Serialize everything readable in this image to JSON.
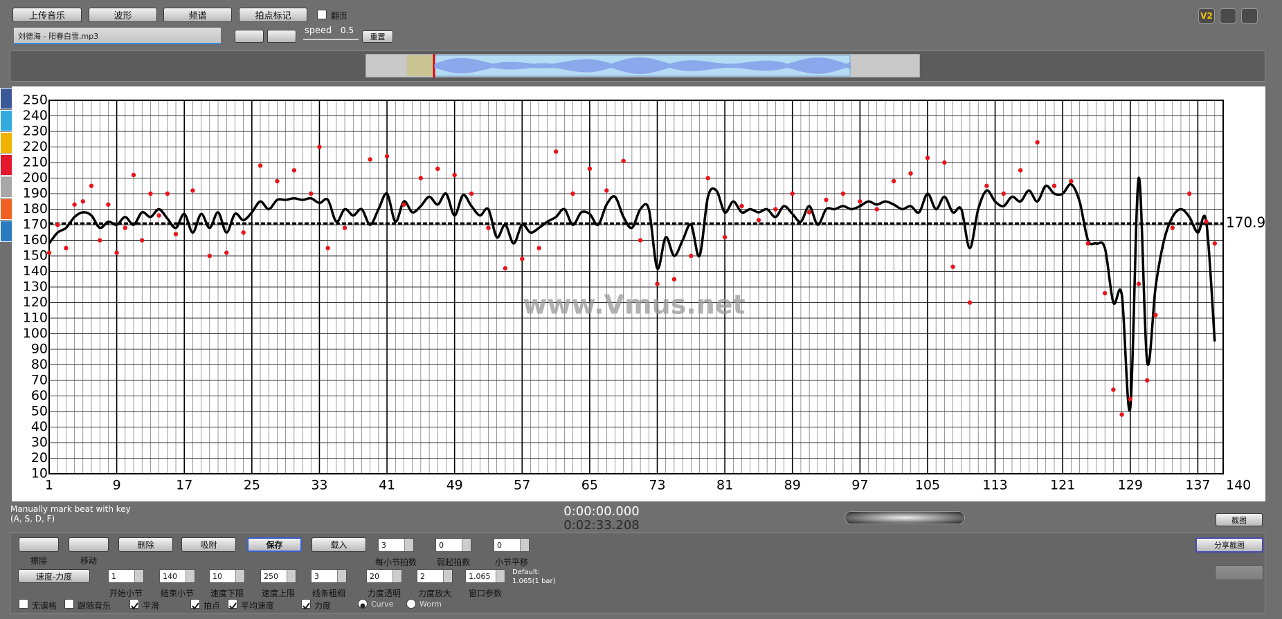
{
  "toolbar": {
    "buttons": [
      "上传音乐",
      "波形",
      "频谱",
      "拍点标记"
    ],
    "page_turn": {
      "label": "翻页",
      "checked": false
    },
    "file": "刘德海 - 阳春白雪.mp3",
    "speed_label": "speed",
    "speed": "0.5",
    "reset": "重置",
    "version_badge": "V2"
  },
  "status": {
    "hint": [
      "Manually mark beat with key",
      "(A, S, D, F)"
    ],
    "time": [
      "0:00:00.000",
      "0:02:33.208"
    ],
    "screenshot": "截图",
    "share": "分享截图"
  },
  "controls": {
    "tools": [
      "擦除",
      "移动"
    ],
    "buttons": [
      "删除",
      "吸附",
      "保存",
      "载入"
    ],
    "mode": "速度-力度",
    "fields_row1": [
      {
        "label": "每小节拍数",
        "value": "3"
      },
      {
        "label": "弱起拍数",
        "value": "0"
      },
      {
        "label": "小节平移",
        "value": "0"
      }
    ],
    "fields_row2": [
      {
        "label": "开始小节",
        "value": "1"
      },
      {
        "label": "结束小节",
        "value": "140"
      },
      {
        "label": "速度下限",
        "value": "10"
      },
      {
        "label": "速度上限",
        "value": "250"
      },
      {
        "label": "线条粗细",
        "value": "3"
      },
      {
        "label": "力度透明",
        "value": "20"
      },
      {
        "label": "力度放大",
        "value": "2"
      },
      {
        "label": "窗口参数",
        "value": "1.065"
      }
    ],
    "default": [
      "Default:",
      "1.065(1 bar)"
    ],
    "checks": [
      {
        "label": "无谱格",
        "checked": false
      },
      {
        "label": "跟随音乐",
        "checked": false
      },
      {
        "label": "平滑",
        "checked": true
      },
      {
        "label": "拍点",
        "checked": true
      },
      {
        "label": "平均速度",
        "checked": true
      },
      {
        "label": "力度",
        "checked": true
      }
    ],
    "radios": [
      {
        "label": "Curve",
        "selected": true
      },
      {
        "label": "Worm",
        "selected": false
      }
    ]
  },
  "chart_data": {
    "type": "line",
    "watermark": "www.Vmus.net",
    "grid": true,
    "minor_grid": true,
    "xlim": [
      1,
      140
    ],
    "xticks": [
      1,
      9,
      17,
      25,
      33,
      41,
      49,
      57,
      65,
      73,
      81,
      89,
      97,
      105,
      113,
      121,
      129,
      137,
      140
    ],
    "ylim": [
      10,
      250
    ],
    "yticks": [
      10,
      20,
      30,
      40,
      50,
      60,
      70,
      80,
      90,
      100,
      110,
      120,
      130,
      140,
      150,
      160,
      170,
      180,
      190,
      200,
      210,
      220,
      230,
      240,
      250
    ],
    "reference_line": 170.9,
    "x": [
      1,
      2,
      3,
      4,
      5,
      6,
      7,
      8,
      9,
      10,
      11,
      12,
      13,
      14,
      15,
      16,
      17,
      18,
      19,
      20,
      21,
      22,
      23,
      24,
      25,
      26,
      27,
      28,
      29,
      30,
      31,
      32,
      33,
      34,
      35,
      36,
      37,
      38,
      39,
      40,
      41,
      42,
      43,
      44,
      45,
      46,
      47,
      48,
      49,
      50,
      51,
      52,
      53,
      54,
      55,
      56,
      57,
      58,
      59,
      60,
      61,
      62,
      63,
      64,
      65,
      66,
      67,
      68,
      69,
      70,
      71,
      72,
      73,
      74,
      75,
      76,
      77,
      78,
      79,
      80,
      81,
      82,
      83,
      84,
      85,
      86,
      87,
      88,
      89,
      90,
      91,
      92,
      93,
      94,
      95,
      96,
      97,
      98,
      99,
      100,
      101,
      102,
      103,
      104,
      105,
      106,
      107,
      108,
      109,
      110,
      111,
      112,
      113,
      114,
      115,
      116,
      117,
      118,
      119,
      120,
      121,
      122,
      123,
      124,
      125,
      126,
      127,
      128,
      129,
      130,
      131,
      132,
      133,
      134,
      135,
      136,
      137,
      138,
      139
    ],
    "series": [
      {
        "color": "#000000",
        "values": [
          158,
          165,
          168,
          175,
          178,
          176,
          168,
          172,
          170,
          175,
          170,
          178,
          175,
          180,
          174,
          168,
          177,
          165,
          177,
          168,
          178,
          165,
          177,
          173,
          178,
          185,
          180,
          186,
          186,
          187,
          186,
          187,
          184,
          186,
          172,
          180,
          176,
          180,
          170,
          180,
          190,
          172,
          185,
          178,
          182,
          188,
          183,
          190,
          176,
          189,
          182,
          176,
          180,
          162,
          170,
          158,
          170,
          165,
          168,
          172,
          175,
          180,
          170,
          178,
          177,
          170,
          183,
          188,
          175,
          168,
          180,
          180,
          142,
          162,
          150,
          160,
          170,
          150,
          188,
          192,
          178,
          185,
          178,
          180,
          178,
          180,
          175,
          182,
          177,
          172,
          182,
          170,
          180,
          180,
          182,
          180,
          182,
          185,
          183,
          185,
          183,
          180,
          182,
          178,
          190,
          180,
          188,
          178,
          180,
          155,
          180,
          192,
          185,
          182,
          188,
          185,
          192,
          185,
          195,
          190,
          190,
          196,
          185,
          160,
          158,
          155,
          120,
          125,
          52,
          200,
          82,
          130,
          160,
          175,
          180,
          175,
          165,
          172,
          95
        ]
      }
    ],
    "points": {
      "color": "#e8161b",
      "x": [
        1,
        2,
        3,
        4,
        5,
        6,
        7,
        8,
        9,
        10,
        11,
        12,
        13,
        14,
        15,
        16,
        18,
        20,
        22,
        24,
        26,
        28,
        30,
        32,
        33,
        34,
        36,
        39,
        41,
        43,
        45,
        47,
        49,
        51,
        53,
        55,
        57,
        59,
        61,
        63,
        65,
        67,
        69,
        71,
        73,
        75,
        77,
        79,
        81,
        83,
        85,
        87,
        89,
        91,
        93,
        95,
        97,
        99,
        101,
        103,
        105,
        107,
        108,
        110,
        112,
        114,
        116,
        118,
        120,
        122,
        124,
        126,
        127,
        128,
        129,
        130,
        131,
        132,
        134,
        136,
        138,
        139
      ],
      "values": [
        152,
        170,
        155,
        183,
        185,
        195,
        160,
        183,
        152,
        168,
        202,
        160,
        190,
        176,
        190,
        164,
        192,
        150,
        152,
        165,
        208,
        198,
        205,
        190,
        220,
        155,
        168,
        212,
        214,
        183,
        200,
        206,
        202,
        190,
        168,
        142,
        148,
        155,
        217,
        190,
        206,
        192,
        211,
        160,
        132,
        135,
        150,
        200,
        162,
        182,
        173,
        180,
        190,
        178,
        186,
        190,
        185,
        180,
        198,
        203,
        213,
        210,
        143,
        120,
        195,
        190,
        205,
        223,
        195,
        198,
        158,
        126,
        64,
        48,
        58,
        132,
        70,
        112,
        168,
        190,
        172,
        158
      ]
    }
  }
}
